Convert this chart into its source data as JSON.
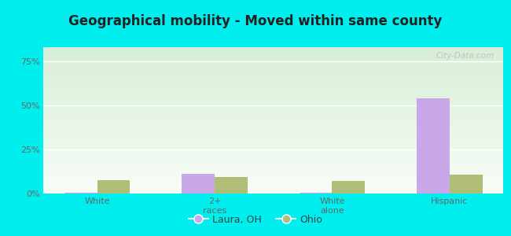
{
  "title": "Geographical mobility - Moved within same county",
  "categories": [
    "White",
    "2+\nraces",
    "White\nalone",
    "Hispanic"
  ],
  "laura_values": [
    0.5,
    11.0,
    0.5,
    54.0
  ],
  "ohio_values": [
    7.5,
    9.5,
    7.0,
    10.5
  ],
  "laura_color": "#c8a8e8",
  "ohio_color": "#b0be78",
  "outer_bg": "#00eeee",
  "yticks": [
    0,
    25,
    50,
    75
  ],
  "ylabels": [
    "0%",
    "25%",
    "50%",
    "75%"
  ],
  "ylim": [
    0,
    83
  ],
  "bar_width": 0.28,
  "legend_laura": "Laura, OH",
  "legend_ohio": "Ohio",
  "watermark": "City-Data.com",
  "title_fontsize": 12,
  "tick_fontsize": 8,
  "legend_fontsize": 9
}
